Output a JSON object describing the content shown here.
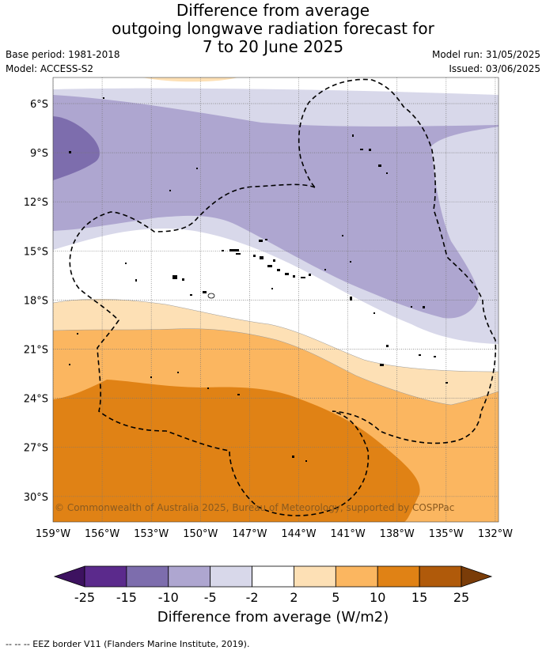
{
  "title_lines": [
    "Difference from average",
    "outgoing longwave radiation forecast for",
    "7 to 20 June 2025"
  ],
  "meta_left": [
    "Base period: 1981-2018",
    "Model: ACCESS-S2"
  ],
  "meta_right": [
    "Model run: 31/05/2025",
    "Issued: 03/06/2025"
  ],
  "lat_labels": [
    "6°S",
    "9°S",
    "12°S",
    "15°S",
    "18°S",
    "21°S",
    "24°S",
    "27°S",
    "30°S"
  ],
  "lon_labels": [
    "159°W",
    "156°W",
    "153°W",
    "150°W",
    "147°W",
    "144°W",
    "141°W",
    "138°W",
    "135°W",
    "132°W"
  ],
  "copyright": "© Commonwealth of Australia 2025, Bureau of Meteorology, supported by COSPPac",
  "colorbar": {
    "ticks": [
      "-25",
      "-15",
      "-10",
      "-5",
      "-2",
      "2",
      "5",
      "10",
      "15",
      "25"
    ],
    "colors": [
      "#3d1260",
      "#5b2a8c",
      "#7d6dad",
      "#aea6d0",
      "#d8d8ea",
      "#ffffff",
      "#fde0b5",
      "#fbb660",
      "#e08215",
      "#b05a0a",
      "#7a3c08"
    ],
    "label": "Difference from average (W/m2)"
  },
  "legend_footer": "--  --  -- EEZ border V11 (Flanders Marine Institute, 2019)."
}
